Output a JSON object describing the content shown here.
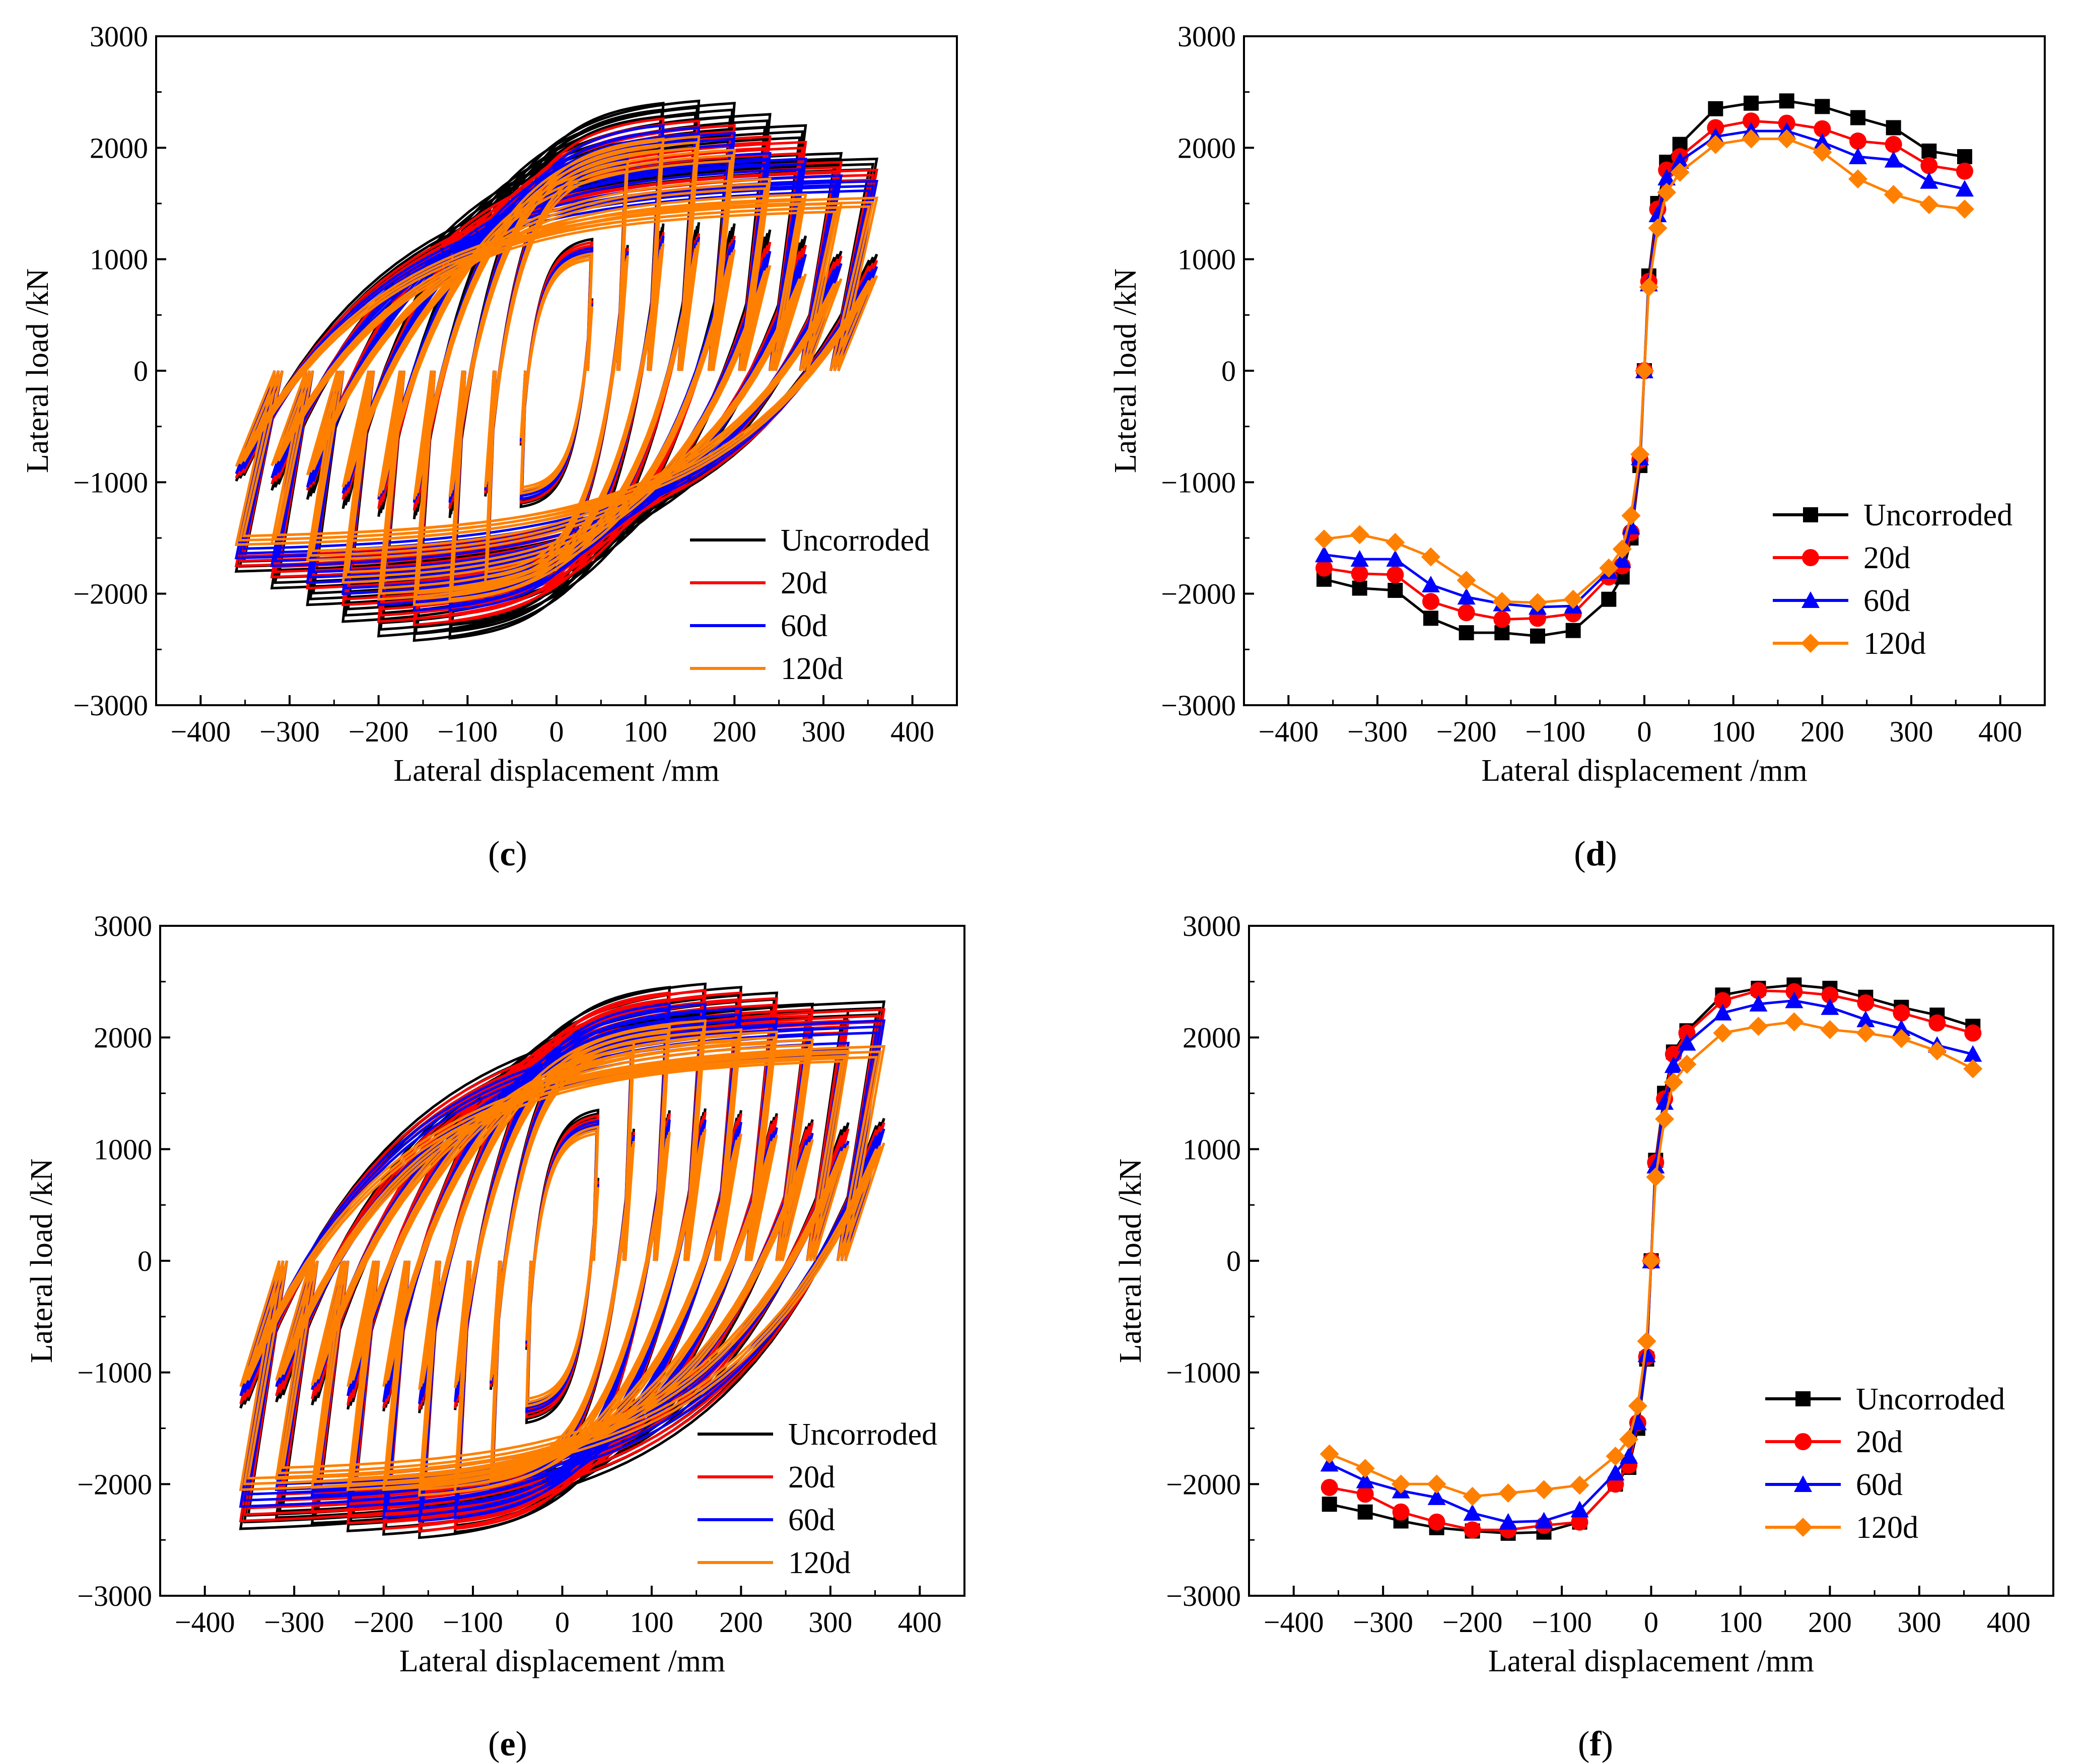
{
  "panel_letters": [
    "c",
    "d",
    "e",
    "f"
  ],
  "colors": {
    "Uncorroded": "#000000",
    "20d": "#ff0000",
    "60d": "#0000ff",
    "120d": "#ff8000"
  },
  "chart_data": [
    {
      "id": "c",
      "type": "line",
      "title": "",
      "xlabel": "Lateral displacement /mm",
      "ylabel": "Lateral load /kN",
      "xlim": [
        -450,
        450
      ],
      "ylim": [
        -3000,
        3000
      ],
      "xticks": [
        -400,
        -300,
        -200,
        -100,
        0,
        100,
        200,
        300,
        400
      ],
      "yticks": [
        -3000,
        -2000,
        -1000,
        0,
        1000,
        2000,
        3000
      ],
      "legend_position": "bottom-right",
      "series": [
        {
          "name": "Uncorroded",
          "kind": "hysteresis",
          "x": [
            40,
            80,
            120,
            160,
            200,
            240,
            280,
            320,
            360
          ],
          "pos": [
            1180,
            2050,
            2400,
            2420,
            2400,
            2300,
            2200,
            1950,
            1900
          ],
          "neg": [
            -1220,
            -2050,
            -2400,
            -2420,
            -2380,
            -2250,
            -2100,
            -1950,
            -1800
          ]
        },
        {
          "name": "20d",
          "kind": "hysteresis",
          "x": [
            40,
            80,
            120,
            160,
            200,
            240,
            280,
            320,
            360
          ],
          "pos": [
            1150,
            2000,
            2260,
            2240,
            2200,
            2100,
            2050,
            1870,
            1800
          ],
          "neg": [
            -1180,
            -2000,
            -2250,
            -2280,
            -2250,
            -2100,
            -1950,
            -1850,
            -1750
          ]
        },
        {
          "name": "60d",
          "kind": "hysteresis",
          "x": [
            40,
            80,
            120,
            160,
            200,
            240,
            280,
            320,
            360
          ],
          "pos": [
            1100,
            1950,
            2200,
            2180,
            2130,
            1950,
            1900,
            1750,
            1700
          ],
          "neg": [
            -1150,
            -1950,
            -2150,
            -2150,
            -2100,
            -2000,
            -1900,
            -1750,
            -1680
          ]
        },
        {
          "name": "120d",
          "kind": "hysteresis",
          "x": [
            40,
            80,
            120,
            160,
            200,
            240,
            280,
            320,
            360
          ],
          "pos": [
            1050,
            1880,
            2080,
            2100,
            1980,
            1720,
            1580,
            1500,
            1550
          ],
          "neg": [
            -1100,
            -1900,
            -2050,
            -2100,
            -2050,
            -1900,
            -1700,
            -1550,
            -1560
          ]
        }
      ]
    },
    {
      "id": "d",
      "type": "line",
      "title": "",
      "xlabel": "Lateral displacement /mm",
      "ylabel": "Lateral load /kN",
      "xlim": [
        -450,
        450
      ],
      "ylim": [
        -3000,
        3000
      ],
      "xticks": [
        -400,
        -300,
        -200,
        -100,
        0,
        100,
        200,
        300,
        400
      ],
      "yticks": [
        -3000,
        -2000,
        -1000,
        0,
        1000,
        2000,
        3000
      ],
      "legend_position": "center-right",
      "x": [
        -360,
        -320,
        -280,
        -240,
        -200,
        -160,
        -120,
        -80,
        -40,
        -25,
        -15,
        -5,
        0,
        5,
        15,
        25,
        40,
        80,
        120,
        160,
        200,
        240,
        280,
        320,
        360
      ],
      "series": [
        {
          "name": "Uncorroded",
          "marker": "square",
          "values": [
            -1870,
            -1950,
            -1970,
            -2220,
            -2350,
            -2350,
            -2380,
            -2330,
            -2050,
            -1850,
            -1500,
            -850,
            0,
            850,
            1500,
            1870,
            2030,
            2350,
            2400,
            2420,
            2370,
            2270,
            2180,
            1970,
            1920
          ]
        },
        {
          "name": "20d",
          "marker": "circle",
          "values": [
            -1770,
            -1820,
            -1830,
            -2070,
            -2170,
            -2230,
            -2220,
            -2180,
            -1850,
            -1750,
            -1450,
            -800,
            0,
            800,
            1450,
            1800,
            1920,
            2180,
            2240,
            2220,
            2170,
            2060,
            2030,
            1840,
            1790
          ]
        },
        {
          "name": "60d",
          "marker": "triangle",
          "values": [
            -1650,
            -1690,
            -1690,
            -1920,
            -2030,
            -2090,
            -2120,
            -2110,
            -1800,
            -1700,
            -1400,
            -780,
            0,
            780,
            1400,
            1730,
            1880,
            2100,
            2150,
            2150,
            2050,
            1920,
            1890,
            1700,
            1630
          ]
        },
        {
          "name": "120d",
          "marker": "diamond",
          "values": [
            -1510,
            -1470,
            -1540,
            -1670,
            -1880,
            -2070,
            -2080,
            -2050,
            -1770,
            -1600,
            -1300,
            -750,
            0,
            750,
            1280,
            1600,
            1780,
            2030,
            2080,
            2080,
            1960,
            1720,
            1580,
            1490,
            1450
          ]
        }
      ]
    },
    {
      "id": "e",
      "type": "line",
      "title": "",
      "xlabel": "Lateral displacement /mm",
      "ylabel": "Lateral load /kN",
      "xlim": [
        -450,
        450
      ],
      "ylim": [
        -3000,
        3000
      ],
      "xticks": [
        -400,
        -300,
        -200,
        -100,
        0,
        100,
        200,
        300,
        400
      ],
      "yticks": [
        -3000,
        -2000,
        -1000,
        0,
        1000,
        2000,
        3000
      ],
      "legend_position": "bottom-right",
      "series": [
        {
          "name": "Uncorroded",
          "kind": "hysteresis",
          "x": [
            40,
            80,
            120,
            160,
            200,
            240,
            280,
            320,
            360
          ],
          "pos": [
            1350,
            2150,
            2450,
            2480,
            2450,
            2400,
            2300,
            2250,
            2320
          ],
          "neg": [
            -1450,
            -2100,
            -2430,
            -2480,
            -2450,
            -2420,
            -2350,
            -2300,
            -2400
          ]
        },
        {
          "name": "20d",
          "kind": "hysteresis",
          "x": [
            40,
            80,
            120,
            160,
            200,
            240,
            280,
            320,
            360
          ],
          "pos": [
            1300,
            2100,
            2400,
            2420,
            2400,
            2350,
            2250,
            2150,
            2250
          ],
          "neg": [
            -1400,
            -2050,
            -2400,
            -2420,
            -2400,
            -2350,
            -2250,
            -2200,
            -2330
          ]
        },
        {
          "name": "60d",
          "kind": "hysteresis",
          "x": [
            40,
            80,
            120,
            160,
            200,
            240,
            280,
            320,
            360
          ],
          "pos": [
            1250,
            2050,
            2300,
            2300,
            2260,
            2170,
            2080,
            1950,
            2150
          ],
          "neg": [
            -1350,
            -2000,
            -2300,
            -2330,
            -2300,
            -2200,
            -2100,
            -2050,
            -2200
          ]
        },
        {
          "name": "120d",
          "kind": "hysteresis",
          "x": [
            40,
            80,
            120,
            160,
            200,
            240,
            280,
            320,
            360
          ],
          "pos": [
            1200,
            1950,
            2100,
            2150,
            2070,
            2050,
            1980,
            1880,
            1920
          ],
          "neg": [
            -1300,
            -1950,
            -2070,
            -2100,
            -2050,
            -2050,
            -2030,
            -1950,
            -2050
          ]
        }
      ]
    },
    {
      "id": "f",
      "type": "line",
      "title": "",
      "xlabel": "Lateral displacement /mm",
      "ylabel": "Lateral load /kN",
      "xlim": [
        -450,
        450
      ],
      "ylim": [
        -3000,
        3000
      ],
      "xticks": [
        -400,
        -300,
        -200,
        -100,
        0,
        100,
        200,
        300,
        400
      ],
      "yticks": [
        -3000,
        -2000,
        -1000,
        0,
        1000,
        2000,
        3000
      ],
      "legend_position": "bottom-right",
      "x": [
        -360,
        -320,
        -280,
        -240,
        -200,
        -160,
        -120,
        -80,
        -40,
        -25,
        -15,
        -5,
        0,
        5,
        15,
        25,
        40,
        80,
        120,
        160,
        200,
        240,
        280,
        320,
        360
      ],
      "series": [
        {
          "name": "Uncorroded",
          "marker": "square",
          "values": [
            -2180,
            -2250,
            -2330,
            -2390,
            -2420,
            -2440,
            -2430,
            -2340,
            -2000,
            -1850,
            -1500,
            -880,
            0,
            900,
            1500,
            1870,
            2060,
            2380,
            2440,
            2470,
            2440,
            2360,
            2270,
            2200,
            2100
          ]
        },
        {
          "name": "20d",
          "marker": "circle",
          "values": [
            -2030,
            -2090,
            -2250,
            -2340,
            -2410,
            -2410,
            -2370,
            -2340,
            -2000,
            -1830,
            -1450,
            -860,
            0,
            880,
            1450,
            1850,
            2040,
            2330,
            2420,
            2410,
            2380,
            2310,
            2220,
            2130,
            2040
          ]
        },
        {
          "name": "60d",
          "marker": "triangle",
          "values": [
            -1820,
            -1970,
            -2060,
            -2120,
            -2260,
            -2340,
            -2330,
            -2230,
            -1900,
            -1750,
            -1450,
            -840,
            0,
            850,
            1420,
            1750,
            1950,
            2220,
            2300,
            2330,
            2270,
            2160,
            2080,
            1930,
            1850
          ]
        },
        {
          "name": "120d",
          "marker": "diamond",
          "values": [
            -1730,
            -1860,
            -2000,
            -2000,
            -2110,
            -2080,
            -2050,
            -2010,
            -1750,
            -1600,
            -1300,
            -720,
            0,
            750,
            1270,
            1600,
            1760,
            2040,
            2100,
            2140,
            2070,
            2040,
            1990,
            1880,
            1720
          ]
        }
      ]
    }
  ]
}
